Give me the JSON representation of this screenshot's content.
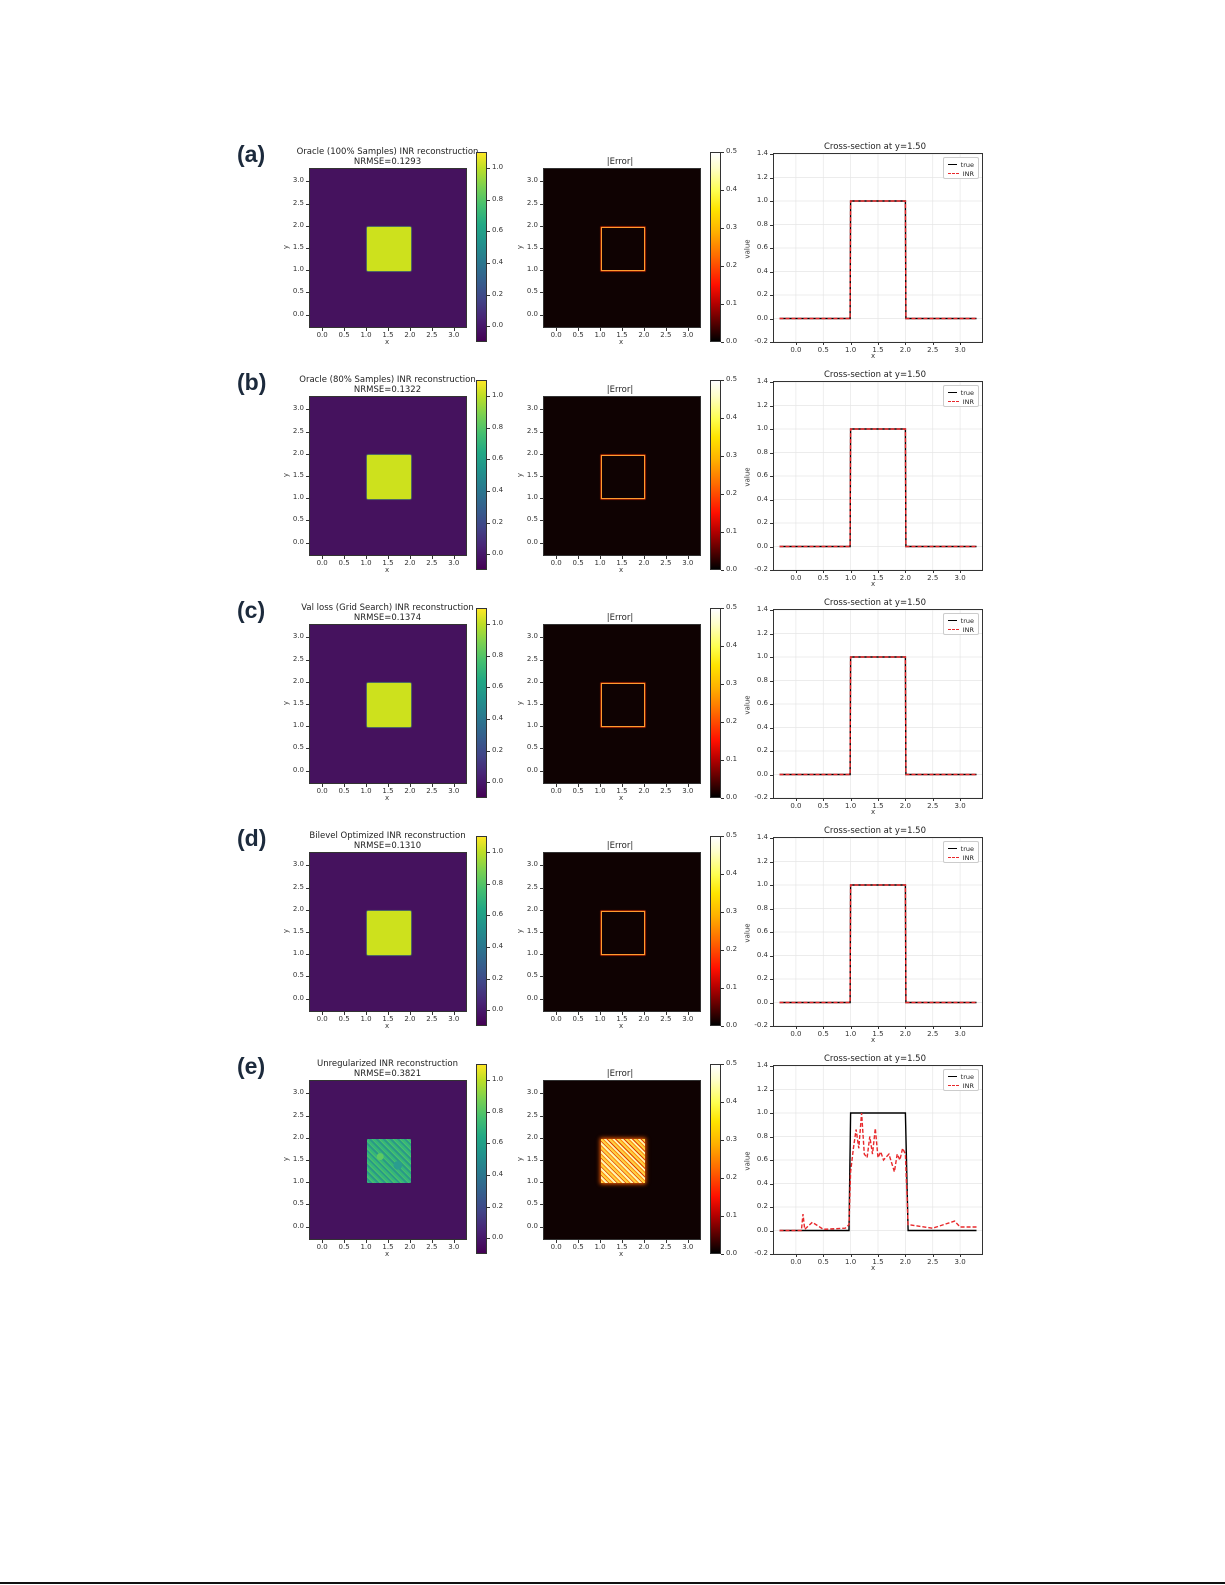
{
  "figure": {
    "panels": [
      {
        "label": "(a)",
        "reconstruction_title": "Oracle (100% Samples) INR reconstruction",
        "nrmse": "NRMSE=0.1293",
        "error_title": "|Error|",
        "cross_title": "Cross-section at y=1.50",
        "square_color": "#cde11d",
        "error_style": "edge"
      },
      {
        "label": "(b)",
        "reconstruction_title": "Oracle (80% Samples) INR reconstruction",
        "nrmse": "NRMSE=0.1322",
        "error_title": "|Error|",
        "cross_title": "Cross-section at y=1.50",
        "square_color": "#cde11d",
        "error_style": "edge"
      },
      {
        "label": "(c)",
        "reconstruction_title": "Val loss (Grid Search) INR reconstruction",
        "nrmse": "NRMSE=0.1374",
        "error_title": "|Error|",
        "cross_title": "Cross-section at y=1.50",
        "square_color": "#cde11d",
        "error_style": "edge"
      },
      {
        "label": "(d)",
        "reconstruction_title": "Bilevel Optimized INR reconstruction",
        "nrmse": "NRMSE=0.1310",
        "error_title": "|Error|",
        "cross_title": "Cross-section at y=1.50",
        "square_color": "#cde11d",
        "error_style": "edge"
      },
      {
        "label": "(e)",
        "reconstruction_title": "Unregularized INR reconstruction",
        "nrmse": "NRMSE=0.3821",
        "error_title": "|Error|",
        "cross_title": "Cross-section at y=1.50",
        "square_color": "#3fb37a",
        "error_style": "filled"
      }
    ],
    "axes": {
      "image_ticks": [
        "0.0",
        "0.5",
        "1.0",
        "1.5",
        "2.0",
        "2.5",
        "3.0"
      ],
      "xlabel": "x",
      "ylabel": "y",
      "recon_cbar_ticks": [
        "0.0",
        "0.2",
        "0.4",
        "0.6",
        "0.8",
        "1.0"
      ],
      "error_cbar_ticks": [
        "0.0",
        "0.1",
        "0.2",
        "0.3",
        "0.4",
        "0.5"
      ],
      "line_yticks": [
        "-0.2",
        "0.0",
        "0.2",
        "0.4",
        "0.6",
        "0.8",
        "1.0",
        "1.2",
        "1.4"
      ],
      "line_xticks": [
        "0.0",
        "0.5",
        "1.0",
        "1.5",
        "2.0",
        "2.5",
        "3.0"
      ],
      "line_ylabel": "value",
      "line_xlabel": "x",
      "legend": [
        "true",
        "INR"
      ]
    },
    "colors": {
      "viridis_bg": "#45125e",
      "true_line": "#000000",
      "inr_line": "#e8282b",
      "error_bg": "#0f0202"
    }
  },
  "chart_data": [
    {
      "type": "heatmap",
      "title": "Oracle (100% Samples) INR reconstruction NRMSE=0.1293",
      "xlabel": "x",
      "ylabel": "y",
      "xlim": [
        -0.3,
        3.3
      ],
      "ylim": [
        -0.3,
        3.3
      ],
      "colorbar": {
        "cmap": "viridis",
        "range": [
          -0.1,
          1.1
        ],
        "ticks": [
          0.0,
          0.2,
          0.4,
          0.6,
          0.8,
          1.0
        ]
      },
      "description": "Square of value ~1.0 on x,y in [1,2], background ~0"
    },
    {
      "type": "heatmap",
      "title": "|Error|",
      "xlabel": "x",
      "ylabel": "y",
      "xlim": [
        -0.3,
        3.3
      ],
      "ylim": [
        -0.3,
        3.3
      ],
      "colorbar": {
        "cmap": "hot",
        "range": [
          0.0,
          0.5
        ],
        "ticks": [
          0.0,
          0.1,
          0.2,
          0.3,
          0.4,
          0.5
        ]
      },
      "description": "Error concentrated on square edges (x,y in [1,2])"
    },
    {
      "type": "line",
      "title": "Cross-section at y=1.50",
      "xlabel": "x",
      "ylabel": "value",
      "xlim": [
        -0.4,
        3.4
      ],
      "ylim": [
        -0.2,
        1.4
      ],
      "grid": true,
      "legend_position": "upper right",
      "x": [
        -0.3,
        0.99,
        1.0,
        2.0,
        2.01,
        3.3
      ],
      "series": [
        {
          "name": "true",
          "values": [
            0,
            0,
            1,
            1,
            0,
            0
          ]
        },
        {
          "name": "INR",
          "values": [
            0,
            0,
            1,
            1,
            0,
            0
          ]
        }
      ]
    },
    {
      "type": "heatmap",
      "title": "Oracle (80% Samples) INR reconstruction NRMSE=0.1322",
      "xlabel": "x",
      "ylabel": "y",
      "xlim": [
        -0.3,
        3.3
      ],
      "ylim": [
        -0.3,
        3.3
      ],
      "colorbar": {
        "cmap": "viridis",
        "range": [
          -0.1,
          1.1
        ],
        "ticks": [
          0.0,
          0.2,
          0.4,
          0.6,
          0.8,
          1.0
        ]
      }
    },
    {
      "type": "heatmap",
      "title": "|Error|",
      "colorbar": {
        "cmap": "hot",
        "range": [
          0.0,
          0.5
        ],
        "ticks": [
          0.0,
          0.1,
          0.2,
          0.3,
          0.4,
          0.5
        ]
      }
    },
    {
      "type": "line",
      "title": "Cross-section at y=1.50",
      "xlabel": "x",
      "ylabel": "value",
      "xlim": [
        -0.4,
        3.4
      ],
      "ylim": [
        -0.2,
        1.4
      ],
      "x": [
        -0.3,
        0.99,
        1.0,
        2.0,
        2.01,
        3.3
      ],
      "series": [
        {
          "name": "true",
          "values": [
            0,
            0,
            1,
            1,
            0,
            0
          ]
        },
        {
          "name": "INR",
          "values": [
            0,
            0,
            1,
            1,
            0,
            0
          ]
        }
      ]
    },
    {
      "type": "heatmap",
      "title": "Val loss (Grid Search) INR reconstruction NRMSE=0.1374",
      "xlabel": "x",
      "ylabel": "y",
      "xlim": [
        -0.3,
        3.3
      ],
      "ylim": [
        -0.3,
        3.3
      ],
      "colorbar": {
        "cmap": "viridis",
        "range": [
          -0.1,
          1.1
        ],
        "ticks": [
          0.0,
          0.2,
          0.4,
          0.6,
          0.8,
          1.0
        ]
      }
    },
    {
      "type": "heatmap",
      "title": "|Error|",
      "colorbar": {
        "cmap": "hot",
        "range": [
          0.0,
          0.5
        ],
        "ticks": [
          0.0,
          0.1,
          0.2,
          0.3,
          0.4,
          0.5
        ]
      }
    },
    {
      "type": "line",
      "title": "Cross-section at y=1.50",
      "xlabel": "x",
      "ylabel": "value",
      "xlim": [
        -0.4,
        3.4
      ],
      "ylim": [
        -0.2,
        1.4
      ],
      "x": [
        -0.3,
        0.99,
        1.0,
        2.0,
        2.01,
        3.3
      ],
      "series": [
        {
          "name": "true",
          "values": [
            0,
            0,
            1,
            1,
            0,
            0
          ]
        },
        {
          "name": "INR",
          "values": [
            0,
            0,
            1,
            1,
            0,
            0
          ]
        }
      ]
    },
    {
      "type": "heatmap",
      "title": "Bilevel Optimized INR reconstruction NRMSE=0.1310",
      "xlabel": "x",
      "ylabel": "y",
      "xlim": [
        -0.3,
        3.3
      ],
      "ylim": [
        -0.3,
        3.3
      ],
      "colorbar": {
        "cmap": "viridis",
        "range": [
          -0.1,
          1.1
        ],
        "ticks": [
          0.0,
          0.2,
          0.4,
          0.6,
          0.8,
          1.0
        ]
      }
    },
    {
      "type": "heatmap",
      "title": "|Error|",
      "colorbar": {
        "cmap": "hot",
        "range": [
          0.0,
          0.5
        ],
        "ticks": [
          0.0,
          0.1,
          0.2,
          0.3,
          0.4,
          0.5
        ]
      }
    },
    {
      "type": "line",
      "title": "Cross-section at y=1.50",
      "xlabel": "x",
      "ylabel": "value",
      "xlim": [
        -0.4,
        3.4
      ],
      "ylim": [
        -0.2,
        1.4
      ],
      "x": [
        -0.3,
        0.99,
        1.0,
        2.0,
        2.01,
        3.3
      ],
      "series": [
        {
          "name": "true",
          "values": [
            0,
            0,
            1,
            1,
            0,
            0
          ]
        },
        {
          "name": "INR",
          "values": [
            0,
            0,
            1,
            1,
            0,
            0
          ]
        }
      ]
    },
    {
      "type": "heatmap",
      "title": "Unregularized INR reconstruction NRMSE=0.3821",
      "xlabel": "x",
      "ylabel": "y",
      "xlim": [
        -0.3,
        3.3
      ],
      "ylim": [
        -0.3,
        3.3
      ],
      "colorbar": {
        "cmap": "viridis",
        "range": [
          -0.1,
          1.1
        ],
        "ticks": [
          0.0,
          0.2,
          0.4,
          0.6,
          0.8,
          1.0
        ]
      },
      "description": "Noisy square with values ~0.5-0.8 on x,y in [1,2]"
    },
    {
      "type": "heatmap",
      "title": "|Error|",
      "colorbar": {
        "cmap": "hot",
        "range": [
          0.0,
          0.5
        ],
        "ticks": [
          0.0,
          0.1,
          0.2,
          0.3,
          0.4,
          0.5
        ]
      },
      "description": "Large error filling the whole square interior"
    },
    {
      "type": "line",
      "title": "Cross-section at y=1.50",
      "xlabel": "x",
      "ylabel": "value",
      "xlim": [
        -0.4,
        3.4
      ],
      "ylim": [
        -0.2,
        1.4
      ],
      "x": [
        -0.3,
        0.1,
        0.13,
        0.16,
        0.3,
        0.5,
        0.9,
        0.97,
        1.0,
        1.05,
        1.1,
        1.15,
        1.2,
        1.25,
        1.3,
        1.35,
        1.4,
        1.45,
        1.5,
        1.55,
        1.6,
        1.7,
        1.8,
        1.85,
        1.9,
        1.95,
        2.0,
        2.05,
        2.2,
        2.5,
        2.9,
        3.0,
        3.3
      ],
      "series": [
        {
          "name": "true",
          "values": [
            0,
            0,
            0,
            0,
            0,
            0,
            0,
            0,
            1,
            1,
            1,
            1,
            1,
            1,
            1,
            1,
            1,
            1,
            1,
            1,
            1,
            1,
            1,
            1,
            1,
            1,
            1,
            0,
            0,
            0,
            0,
            0,
            0
          ]
        },
        {
          "name": "INR",
          "values": [
            0,
            0,
            0.14,
            0.01,
            0.07,
            0.01,
            0.02,
            0.05,
            0.5,
            0.7,
            0.86,
            0.7,
            1.0,
            0.65,
            0.62,
            0.8,
            0.65,
            0.87,
            0.62,
            0.67,
            0.6,
            0.65,
            0.5,
            0.65,
            0.6,
            0.7,
            0.65,
            0.05,
            0.04,
            0.02,
            0.08,
            0.03,
            0.03
          ]
        }
      ]
    }
  ]
}
